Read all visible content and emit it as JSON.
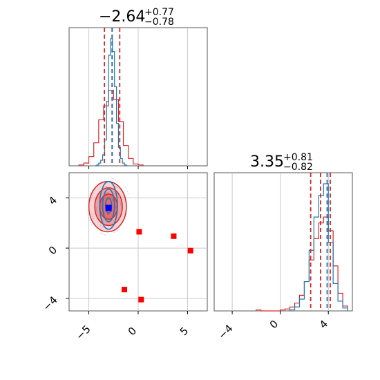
{
  "chart_data": [
    {
      "type": "histogram",
      "panel": "marginal-param-1",
      "title": {
        "main": "−2.64",
        "sup": "+0.77",
        "sub": "−0.78"
      },
      "xlim": [
        -7,
        7
      ],
      "x_ticks": [
        -5,
        0,
        5
      ],
      "grid": true,
      "series": [
        {
          "color": "#1f77b4",
          "bins": [
            -4.4,
            -4.2,
            -4.0,
            -3.8,
            -3.6,
            -3.4,
            -3.2,
            -3.0,
            -2.8,
            -2.6,
            -2.4,
            -2.2,
            -2.0,
            -1.8,
            -1.6,
            -1.4,
            -1.2,
            -1.0
          ],
          "counts": [
            0,
            1,
            3,
            6,
            12,
            28,
            70,
            120,
            138,
            124,
            86,
            46,
            20,
            8,
            3,
            1,
            0
          ]
        },
        {
          "color": "#d62728",
          "bins": [
            -6.0,
            -5.5,
            -5.0,
            -4.5,
            -4.0,
            -3.5,
            -3.0,
            -2.5,
            -2.0,
            -1.5,
            -1.0,
            -0.5,
            0.0,
            0.5
          ],
          "counts": [
            1,
            3,
            10,
            25,
            50,
            65,
            82,
            72,
            48,
            22,
            8,
            2,
            1
          ]
        }
      ],
      "quantile_lines": [
        {
          "color": "#d62728",
          "x": [
            -3.42,
            -2.64,
            -1.87
          ]
        },
        {
          "color": "#1f77b4",
          "x": [
            -2.64
          ]
        }
      ]
    },
    {
      "type": "histogram",
      "panel": "marginal-param-2",
      "title": {
        "main": "3.35",
        "sup": "+0.81",
        "sub": "−0.82"
      },
      "xlim": [
        -5.5,
        6
      ],
      "x_ticks": [
        -4,
        0,
        4
      ],
      "tick_labels": [
        "−4",
        "0",
        "4"
      ],
      "grid": true,
      "series": [
        {
          "color": "#1f77b4",
          "bins": [
            0.8,
            1.2,
            1.6,
            2.0,
            2.4,
            2.8,
            3.2,
            3.6,
            4.0,
            4.4,
            4.8,
            5.2,
            5.6
          ],
          "counts": [
            1,
            4,
            12,
            30,
            62,
            96,
            118,
            130,
            70,
            28,
            10,
            3
          ]
        },
        {
          "color": "#d62728",
          "bins": [
            -2.0,
            -1.6,
            -1.2,
            -0.8,
            -0.4,
            0.0,
            0.4,
            0.8,
            1.2,
            1.6,
            2.0,
            2.4,
            2.8,
            3.2,
            3.6,
            4.0,
            4.4,
            4.8,
            5.2,
            5.6
          ],
          "counts": [
            1,
            0,
            0,
            0,
            0,
            1,
            2,
            4,
            8,
            16,
            30,
            52,
            74,
            90,
            96,
            82,
            46,
            18,
            5
          ]
        }
      ],
      "quantile_lines": [
        {
          "color": "#d62728",
          "x": [
            2.53,
            3.35,
            4.16
          ]
        },
        {
          "color": "#1f77b4",
          "x": [
            3.9
          ]
        }
      ]
    },
    {
      "type": "scatter",
      "panel": "joint-param-1-vs-param-2",
      "xlim": [
        -7,
        7
      ],
      "ylim": [
        -5,
        6
      ],
      "x_ticks": [
        -5,
        0,
        5
      ],
      "y_ticks": [
        -4,
        0,
        4
      ],
      "tick_labels_x": [
        "−5",
        "0",
        "5"
      ],
      "tick_labels_y": [
        "−4",
        "0",
        "4"
      ],
      "grid": true,
      "red_contours": [
        {
          "cx": -3.1,
          "cy": 3.3,
          "rx": 1.9,
          "ry": 2.0,
          "fill": 0.35
        },
        {
          "cx": -3.0,
          "cy": 3.3,
          "rx": 1.4,
          "ry": 1.5,
          "fill": 0.55
        },
        {
          "cx": -3.0,
          "cy": 3.3,
          "rx": 0.9,
          "ry": 1.0,
          "fill": 0.75
        }
      ],
      "blue_contours": [
        {
          "cx": -3.0,
          "cy": 3.4,
          "rx": 0.9,
          "ry": 1.9
        },
        {
          "cx": -3.0,
          "cy": 3.4,
          "rx": 0.6,
          "ry": 1.3
        },
        {
          "cx": -3.0,
          "cy": 3.4,
          "rx": 0.3,
          "ry": 0.6
        }
      ],
      "red_markers": [
        {
          "x": 0.1,
          "y": 1.3
        },
        {
          "x": 3.6,
          "y": 0.95
        },
        {
          "x": 5.3,
          "y": -0.2
        },
        {
          "x": -1.4,
          "y": -3.3
        },
        {
          "x": 0.3,
          "y": -4.1
        }
      ],
      "blue_marker": {
        "x": -3.0,
        "y": 3.2
      },
      "colors": {
        "red": "#d62728",
        "blue": "#1f77b4",
        "marker_blue": "#0000ff",
        "marker_red": "#ff0000"
      }
    }
  ]
}
